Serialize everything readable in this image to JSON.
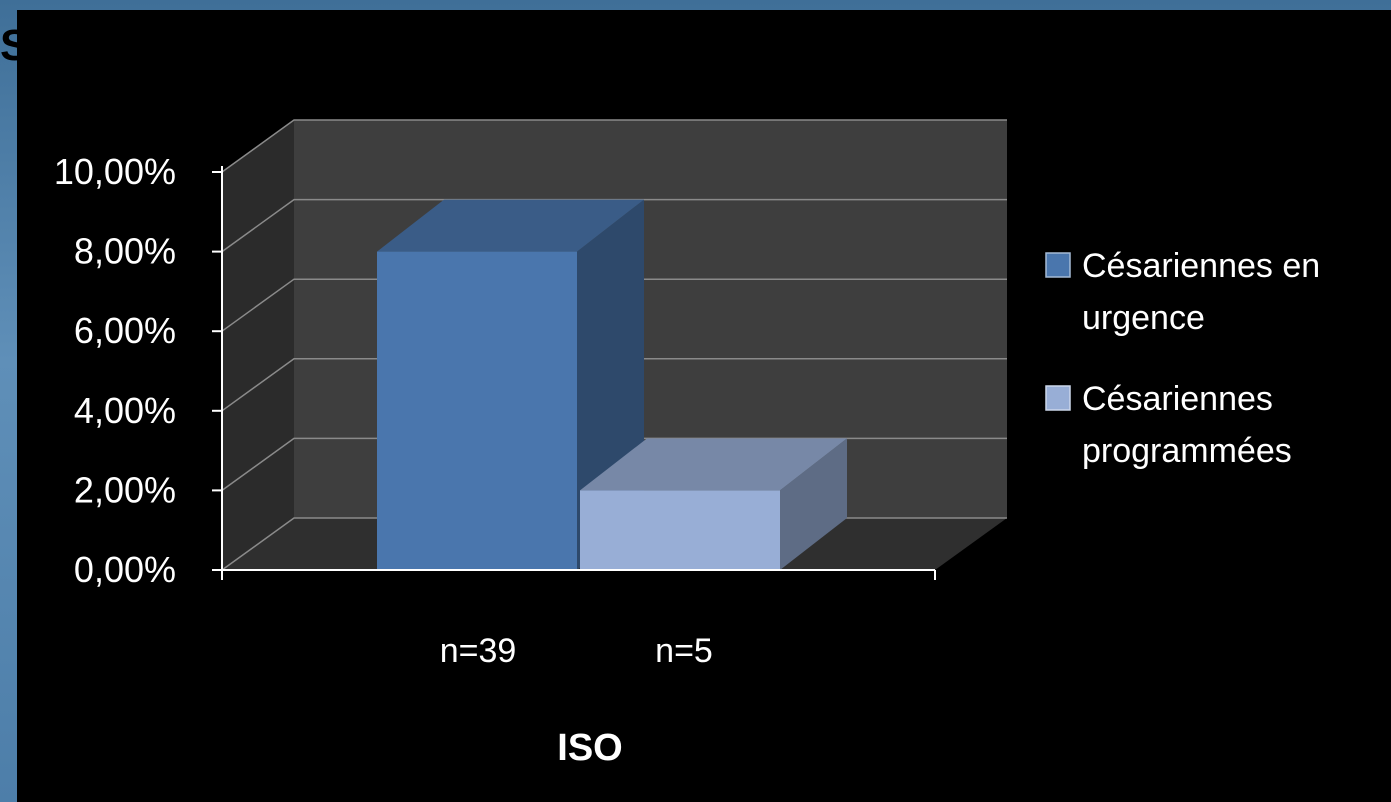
{
  "slide": {
    "title_fragment": "S"
  },
  "colors": {
    "panel": "#000000",
    "back_wall": "#3e3e3e",
    "side_wall": "#2b2b2b",
    "floor": "#2f2f2f",
    "gridline": "#8a8a8a",
    "series_urgence": "#4a76ad",
    "series_programmees": "#98aed6"
  },
  "chart_data": {
    "type": "bar",
    "projection": "3d-clustered",
    "categories": [
      "n=39",
      "n=5"
    ],
    "series": [
      {
        "name": "Césariennes en urgence",
        "category": "n=39",
        "value": 8.0,
        "color": "#4a76ad",
        "legend_lines": [
          "Césariennes en",
          "urgence"
        ]
      },
      {
        "name": "Césariennes programmées",
        "category": "n=5",
        "value": 2.0,
        "color": "#98aed6",
        "legend_lines": [
          "Césariennes",
          "programmées"
        ]
      }
    ],
    "ylim": [
      0,
      10
    ],
    "yticks": [
      0,
      2,
      4,
      6,
      8,
      10
    ],
    "ytick_labels": [
      "0,00%",
      "2,00%",
      "4,00%",
      "6,00%",
      "8,00%",
      "10,00%"
    ],
    "xlabel": "ISO",
    "ylabel": "",
    "grid": true,
    "legend_position": "right"
  }
}
